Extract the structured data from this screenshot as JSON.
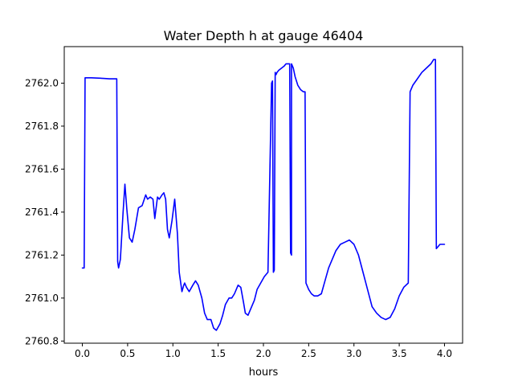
{
  "chart_data": {
    "type": "line",
    "title": "Water Depth h at gauge 46404",
    "xlabel": "hours",
    "ylabel": "",
    "xlim": [
      -0.2,
      4.2
    ],
    "ylim": [
      2760.79,
      2762.17
    ],
    "xticks": [
      0.0,
      0.5,
      1.0,
      1.5,
      2.0,
      2.5,
      3.0,
      3.5,
      4.0
    ],
    "xtick_labels": [
      "0.0",
      "0.5",
      "1.0",
      "1.5",
      "2.0",
      "2.5",
      "3.0",
      "3.5",
      "4.0"
    ],
    "yticks": [
      2760.8,
      2761.0,
      2761.2,
      2761.4,
      2761.6,
      2761.8,
      2762.0
    ],
    "ytick_labels": [
      "2760.8",
      "2761.0",
      "2761.2",
      "2761.4",
      "2761.6",
      "2761.8",
      "2762.0"
    ],
    "grid": false,
    "series": [
      {
        "name": "",
        "color": "#0000ff",
        "x": [
          0.0,
          0.02,
          0.03,
          0.1,
          0.2,
          0.3,
          0.35,
          0.38,
          0.39,
          0.4,
          0.42,
          0.45,
          0.47,
          0.49,
          0.52,
          0.55,
          0.58,
          0.62,
          0.66,
          0.7,
          0.72,
          0.75,
          0.78,
          0.8,
          0.83,
          0.85,
          0.88,
          0.9,
          0.92,
          0.94,
          0.96,
          0.99,
          1.02,
          1.05,
          1.07,
          1.1,
          1.12,
          1.13,
          1.15,
          1.18,
          1.22,
          1.25,
          1.28,
          1.32,
          1.35,
          1.38,
          1.42,
          1.45,
          1.48,
          1.52,
          1.55,
          1.58,
          1.62,
          1.65,
          1.68,
          1.72,
          1.75,
          1.78,
          1.8,
          1.83,
          1.86,
          1.9,
          1.93,
          1.97,
          2.01,
          2.05,
          2.09,
          2.1,
          2.11,
          2.12,
          2.13,
          2.14,
          2.15,
          2.17,
          2.2,
          2.23,
          2.25,
          2.27,
          2.29,
          2.3,
          2.31,
          2.31,
          2.33,
          2.35,
          2.38,
          2.41,
          2.44,
          2.46,
          2.47,
          2.5,
          2.53,
          2.56,
          2.6,
          2.64,
          2.68,
          2.72,
          2.76,
          2.8,
          2.85,
          2.9,
          2.95,
          3.0,
          3.05,
          3.1,
          3.15,
          3.2,
          3.25,
          3.3,
          3.35,
          3.4,
          3.45,
          3.5,
          3.55,
          3.6,
          3.62,
          3.63,
          3.65,
          3.7,
          3.75,
          3.8,
          3.85,
          3.88,
          3.9,
          3.91,
          3.95,
          4.0
        ],
        "y": [
          2761.14,
          2761.14,
          2762.025,
          2762.025,
          2762.023,
          2762.02,
          2762.02,
          2762.02,
          2761.17,
          2761.14,
          2761.18,
          2761.4,
          2761.53,
          2761.42,
          2761.28,
          2761.26,
          2761.32,
          2761.42,
          2761.43,
          2761.48,
          2761.46,
          2761.47,
          2761.46,
          2761.37,
          2761.47,
          2761.46,
          2761.48,
          2761.49,
          2761.46,
          2761.32,
          2761.28,
          2761.36,
          2761.46,
          2761.3,
          2761.12,
          2761.03,
          2761.06,
          2761.07,
          2761.05,
          2761.03,
          2761.06,
          2761.08,
          2761.06,
          2761.0,
          2760.93,
          2760.9,
          2760.9,
          2760.86,
          2760.85,
          2760.88,
          2760.92,
          2760.97,
          2761.0,
          2761.0,
          2761.02,
          2761.06,
          2761.05,
          2760.98,
          2760.93,
          2760.92,
          2760.95,
          2760.99,
          2761.04,
          2761.07,
          2761.1,
          2761.12,
          2762.0,
          2762.01,
          2761.12,
          2761.13,
          2762.05,
          2762.04,
          2762.05,
          2762.06,
          2762.07,
          2762.08,
          2762.09,
          2762.09,
          2762.09,
          2761.21,
          2761.2,
          2762.09,
          2762.07,
          2762.03,
          2761.99,
          2761.97,
          2761.96,
          2761.96,
          2761.07,
          2761.04,
          2761.02,
          2761.01,
          2761.01,
          2761.02,
          2761.08,
          2761.14,
          2761.18,
          2761.22,
          2761.25,
          2761.26,
          2761.27,
          2761.25,
          2761.2,
          2761.12,
          2761.04,
          2760.96,
          2760.93,
          2760.91,
          2760.9,
          2760.91,
          2760.95,
          2761.01,
          2761.05,
          2761.07,
          2761.96,
          2761.97,
          2761.99,
          2762.02,
          2762.05,
          2762.07,
          2762.09,
          2762.11,
          2762.11,
          2761.23,
          2761.25,
          2761.25
        ]
      }
    ]
  }
}
